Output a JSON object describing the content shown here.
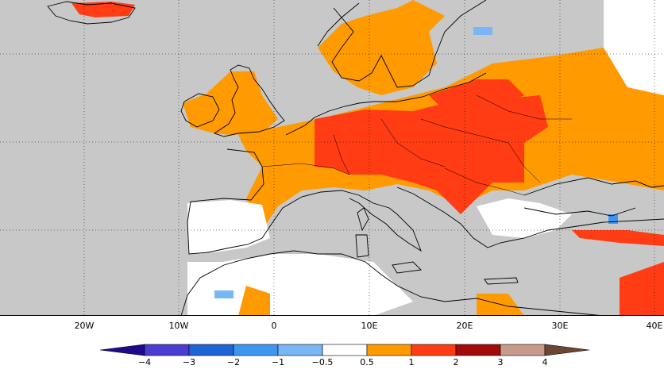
{
  "map": {
    "projection": "cylindrical",
    "extent": {
      "lon_min": -28,
      "lon_max": 40,
      "lat_min": 27,
      "lat_max": 72
    },
    "land_color": "#c8c8c8",
    "ocean_color": "#c8c8c8",
    "coastline_color": "#000000",
    "grid_style": "dotted"
  },
  "longitude_ticks": [
    "20W",
    "10W",
    "0",
    "10E",
    "20E",
    "30E",
    "40E"
  ],
  "legend": {
    "ticks": [
      "−4",
      "−3",
      "−2",
      "−1",
      "−0.5",
      "0.5",
      "1",
      "2",
      "3",
      "4"
    ],
    "bins": [
      {
        "color": "#1f0a8c"
      },
      {
        "color": "#4a3dd2"
      },
      {
        "color": "#1f64d4"
      },
      {
        "color": "#3f96f0"
      },
      {
        "color": "#78b6f6"
      },
      {
        "color": "#ffffff"
      },
      {
        "color": "#ff9a00"
      },
      {
        "color": "#ff3c14"
      },
      {
        "color": "#a50a0a"
      },
      {
        "color": "#c89a8c"
      },
      {
        "color": "#6e4632"
      }
    ]
  }
}
